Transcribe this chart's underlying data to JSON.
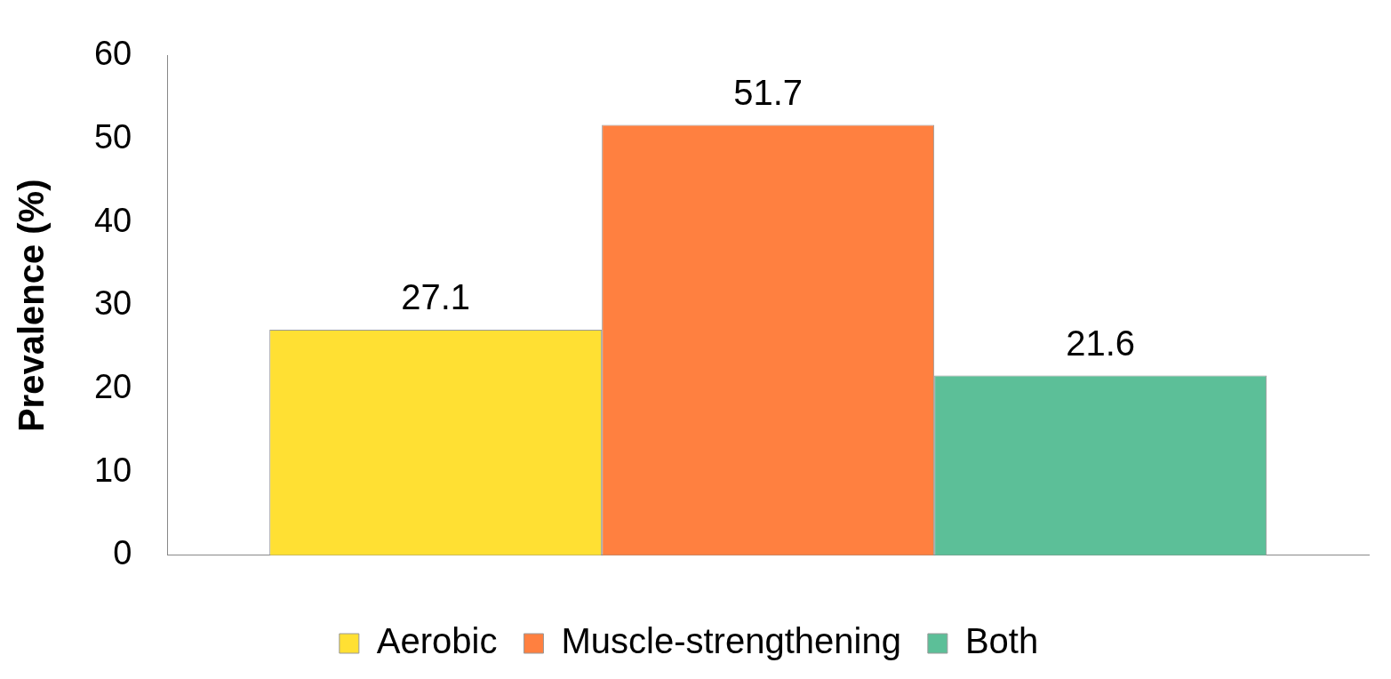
{
  "chart_data": {
    "type": "bar",
    "ylabel": "Prevalence (%)",
    "categories": [
      null
    ],
    "series": [
      {
        "name": "Aerobic",
        "color": "#ffe033",
        "values": [
          27.1
        ]
      },
      {
        "name": "Muscle-strengthening",
        "color": "#ff8040",
        "values": [
          51.7
        ]
      },
      {
        "name": "Both",
        "color": "#5cbf98",
        "values": [
          21.6
        ]
      }
    ],
    "ylim": [
      0,
      60
    ],
    "yticks": [
      0,
      10,
      20,
      30,
      40,
      50,
      60
    ],
    "grid": false,
    "legend": "bottom",
    "data_labels": true
  }
}
